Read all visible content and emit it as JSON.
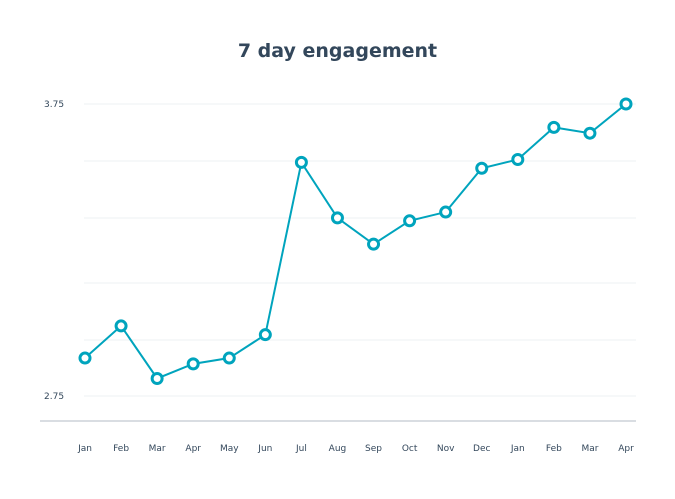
{
  "chart_data": {
    "type": "line",
    "title": "7 day engagement",
    "xlabel": "",
    "ylabel": "",
    "categories": [
      "Jan",
      "Feb",
      "Mar",
      "Apr",
      "May",
      "Jun",
      "Jul",
      "Aug",
      "Sep",
      "Oct",
      "Nov",
      "Dec",
      "Jan",
      "Feb",
      "Mar",
      "Apr"
    ],
    "values": [
      2.88,
      2.99,
      2.81,
      2.86,
      2.88,
      2.96,
      3.55,
      3.36,
      3.27,
      3.35,
      3.38,
      3.53,
      3.56,
      3.67,
      3.65,
      3.75
    ],
    "ylim": [
      2.75,
      3.75
    ],
    "yticks": [
      "3.75",
      "2.75"
    ],
    "grid": true,
    "legend": "none",
    "color": "#00a4bd"
  }
}
